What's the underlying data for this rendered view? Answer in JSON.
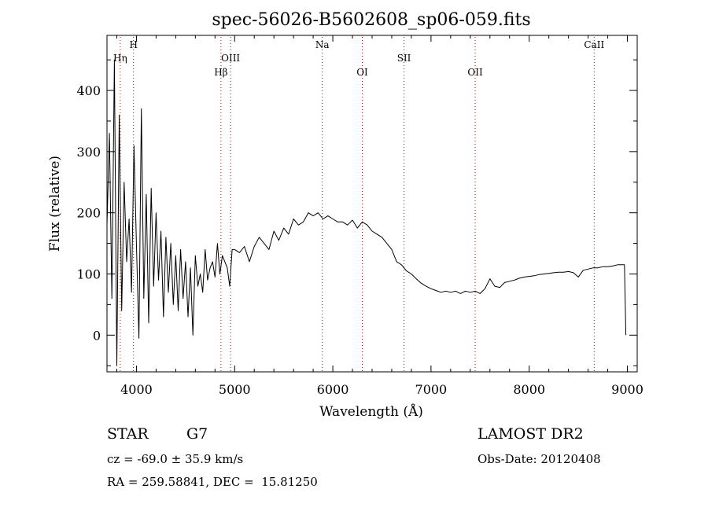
{
  "chart_data": {
    "type": "line",
    "title": "spec-56026-B5602608_sp06-059.fits",
    "xlabel": "Wavelength (Å)",
    "ylabel": "Flux (relative)",
    "xlim": [
      3700,
      9100
    ],
    "ylim": [
      -60,
      490
    ],
    "xticks": [
      4000,
      5000,
      6000,
      7000,
      8000,
      9000
    ],
    "yticks": [
      0,
      100,
      200,
      300,
      400
    ],
    "grid": false,
    "line_color": "#000000",
    "marker_line_color": "#b00000",
    "marker_lines": [
      {
        "label": "Hη",
        "x": 3835,
        "row": 1
      },
      {
        "label": "H",
        "x": 3970,
        "row": 0
      },
      {
        "label": "Hβ",
        "x": 4861,
        "row": 2
      },
      {
        "label": "OIII",
        "x": 4959,
        "row": 1
      },
      {
        "label": "Na",
        "x": 5893,
        "row": 0
      },
      {
        "label": "OI",
        "x": 6300,
        "row": 2
      },
      {
        "label": "SII",
        "x": 6725,
        "row": 1
      },
      {
        "label": "OII",
        "x": 7450,
        "row": 2
      },
      {
        "label": "CaII",
        "x": 8662,
        "row": 0
      }
    ],
    "series": [
      {
        "x": [
          3700,
          3725,
          3750,
          3775,
          3800,
          3825,
          3850,
          3875,
          3900,
          3925,
          3950,
          3975,
          4000,
          4025,
          4050,
          4075,
          4100,
          4125,
          4150,
          4175,
          4200,
          4225,
          4250,
          4275,
          4300,
          4325,
          4350,
          4375,
          4400,
          4425,
          4450,
          4475,
          4500,
          4525,
          4550,
          4575,
          4600,
          4625,
          4650,
          4675,
          4700,
          4725,
          4750,
          4775,
          4800,
          4825,
          4850,
          4875,
          4900,
          4925,
          4950,
          4975,
          5000,
          5050,
          5100,
          5150,
          5200,
          5250,
          5300,
          5350,
          5400,
          5450,
          5500,
          5550,
          5600,
          5650,
          5700,
          5750,
          5800,
          5850,
          5900,
          5950,
          6000,
          6050,
          6100,
          6150,
          6200,
          6250,
          6300,
          6350,
          6400,
          6450,
          6500,
          6550,
          6600,
          6650,
          6700,
          6750,
          6800,
          6850,
          6900,
          6950,
          7000,
          7050,
          7100,
          7150,
          7200,
          7250,
          7300,
          7350,
          7400,
          7450,
          7500,
          7550,
          7600,
          7625,
          7650,
          7700,
          7750,
          7800,
          7850,
          7900,
          7950,
          8000,
          8050,
          8100,
          8150,
          8200,
          8250,
          8300,
          8350,
          8400,
          8450,
          8500,
          8550,
          8600,
          8650,
          8700,
          8750,
          8800,
          8850,
          8900,
          8950,
          8970,
          8985
        ],
        "y": [
          180,
          330,
          60,
          450,
          -50,
          360,
          40,
          250,
          120,
          190,
          70,
          310,
          150,
          -5,
          370,
          60,
          230,
          20,
          240,
          80,
          200,
          90,
          170,
          30,
          160,
          70,
          150,
          50,
          130,
          40,
          140,
          60,
          120,
          30,
          110,
          0,
          130,
          80,
          100,
          70,
          140,
          90,
          110,
          120,
          95,
          150,
          100,
          130,
          120,
          110,
          80,
          140,
          140,
          135,
          145,
          120,
          145,
          160,
          150,
          140,
          170,
          155,
          175,
          165,
          190,
          180,
          185,
          200,
          195,
          200,
          190,
          195,
          190,
          185,
          185,
          180,
          188,
          175,
          185,
          180,
          170,
          165,
          160,
          150,
          140,
          120,
          115,
          105,
          100,
          92,
          85,
          80,
          76,
          73,
          70,
          72,
          70,
          72,
          68,
          72,
          70,
          72,
          68,
          76,
          92,
          86,
          80,
          78,
          86,
          88,
          90,
          93,
          95,
          96,
          97,
          99,
          100,
          101,
          102,
          103,
          103,
          104,
          102,
          95,
          106,
          108,
          110,
          110,
          112,
          112,
          113,
          115,
          115,
          115,
          0
        ]
      }
    ]
  },
  "info": {
    "object_class": "STAR",
    "subclass": "G7",
    "survey": "LAMOST DR2",
    "velocity": "cz = -69.0 ± 35.9 km/s",
    "obs_date": "Obs-Date: 20120408",
    "coords": "RA = 259.58841, DEC =  15.81250"
  }
}
